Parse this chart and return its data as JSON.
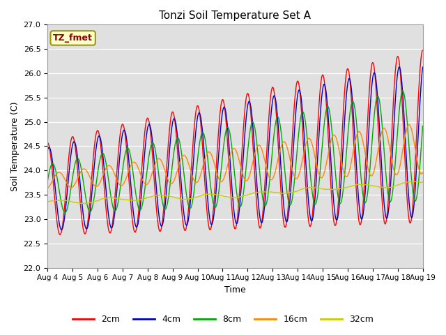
{
  "title": "Tonzi Soil Temperature Set A",
  "xlabel": "Time",
  "ylabel": "Soil Temperature (C)",
  "ylim": [
    22.0,
    27.0
  ],
  "yticks": [
    22.0,
    22.5,
    23.0,
    23.5,
    24.0,
    24.5,
    25.0,
    25.5,
    26.0,
    26.5,
    27.0
  ],
  "annotation_text": "TZ_fmet",
  "background_color": "#e0e0e0",
  "figure_bg": "#ffffff",
  "line_colors": {
    "2cm": "#ff0000",
    "4cm": "#0000cc",
    "8cm": "#00aa00",
    "16cm": "#ff8800",
    "32cm": "#cccc00"
  },
  "legend_labels": [
    "2cm",
    "4cm",
    "8cm",
    "16cm",
    "32cm"
  ],
  "xtick_days": [
    4,
    5,
    6,
    7,
    8,
    9,
    10,
    11,
    12,
    13,
    14,
    15,
    16,
    17,
    18,
    19
  ]
}
